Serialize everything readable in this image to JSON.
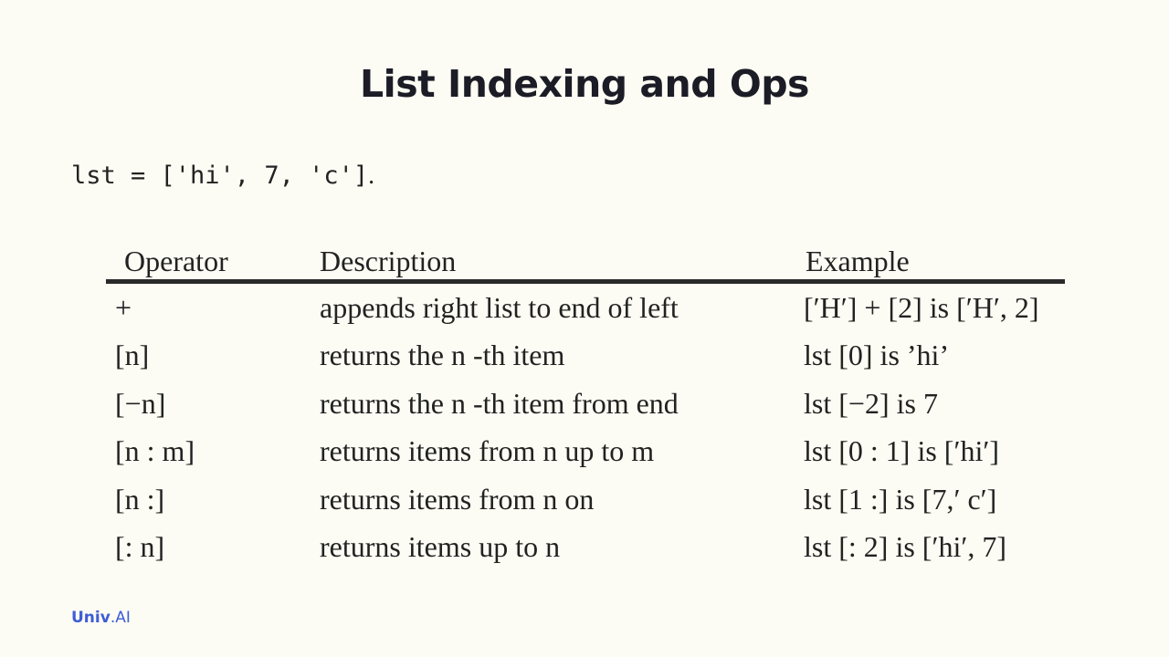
{
  "slide": {
    "title": "List Indexing and Ops",
    "code_text": "lst = ['hi', 7, 'c']",
    "code_period": "."
  },
  "table": {
    "headers": {
      "operator": "Operator",
      "description": "Description",
      "example": "Example"
    },
    "rows": [
      {
        "operator": "+",
        "description": "appends right list to end of left",
        "example": "[′H′] + [2] is  [′H′, 2]"
      },
      {
        "operator": "[n]",
        "description": "returns the n -th item",
        "example": "lst [0] is ’hi’"
      },
      {
        "operator": "[−n]",
        "description": "returns the n -th item from end",
        "example": "lst [−2] is 7"
      },
      {
        "operator": "[n : m]",
        "description": "returns items from n up to m",
        "example": "lst [0 : 1] is  [′hi′]"
      },
      {
        "operator": "[n :]",
        "description": "returns items from n on",
        "example": "lst [1 :] is  [7,′ c′]"
      },
      {
        "operator": "[: n]",
        "description": "returns items up to n",
        "example": "lst [: 2] is  [′hi′, 7]"
      }
    ]
  },
  "brand": {
    "bold": "Univ",
    "rest": ".AI"
  }
}
